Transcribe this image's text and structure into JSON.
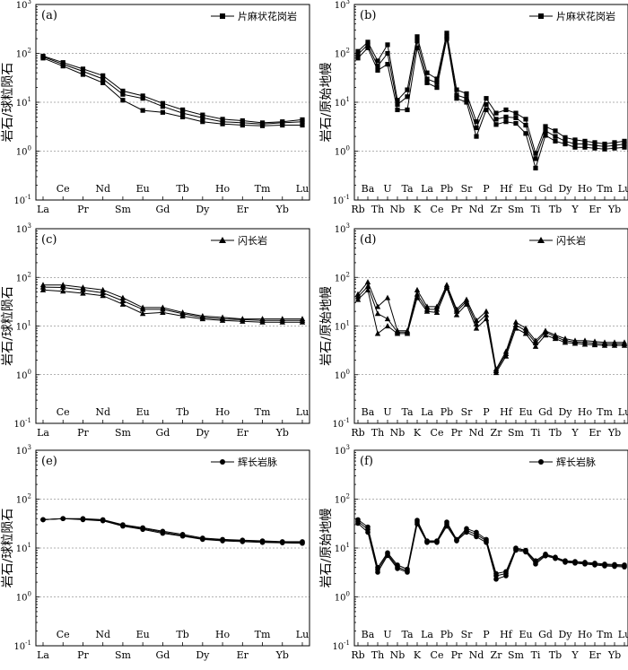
{
  "chart_data": [
    {
      "panel": "(a)",
      "type": "line",
      "x_scale": "category",
      "y_scale": "log",
      "ylim": [
        0.1,
        1000
      ],
      "grid": true,
      "legend_position": "top-right",
      "legend_label": "片麻状花岗岩",
      "marker": "square",
      "ylabel": "岩石/球粒陨石",
      "categories": [
        "La",
        "Ce",
        "Pr",
        "Nd",
        "Sm",
        "Eu",
        "Gd",
        "Tb",
        "Dy",
        "Ho",
        "Er",
        "Tm",
        "Yb",
        "Lu"
      ],
      "series": [
        {
          "values": [
            88,
            65,
            48,
            35,
            17,
            13.5,
            9.5,
            7,
            5.5,
            4.5,
            4.2,
            3.8,
            4.0,
            4.4
          ]
        },
        {
          "values": [
            85,
            60,
            43,
            30,
            14.5,
            12,
            8.2,
            6,
            4.8,
            4.0,
            3.8,
            3.6,
            3.8,
            4.0
          ]
        },
        {
          "values": [
            80,
            55,
            37,
            25,
            11,
            6.8,
            6.2,
            5,
            4.0,
            3.6,
            3.4,
            3.3,
            3.4,
            3.4
          ]
        }
      ]
    },
    {
      "panel": "(b)",
      "type": "line",
      "x_scale": "category",
      "y_scale": "log",
      "ylim": [
        0.1,
        1000
      ],
      "grid": true,
      "legend_position": "top-right",
      "legend_label": "片麻状花岗岩",
      "marker": "square",
      "ylabel": "岩石/原始地幔",
      "categories": [
        "Rb",
        "Ba",
        "Th",
        "U",
        "Nb",
        "Ta",
        "K",
        "La",
        "Ce",
        "Pb",
        "Pr",
        "Sr",
        "Nd",
        "P",
        "Zr",
        "Hf",
        "Sm",
        "Eu",
        "Ti",
        "Gd",
        "Tb",
        "Dy",
        "Y",
        "Ho",
        "Er",
        "Tm",
        "Yb",
        "Lu"
      ],
      "series": [
        {
          "values": [
            110,
            170,
            70,
            150,
            11,
            18,
            220,
            40,
            30,
            260,
            18,
            15,
            4,
            12,
            6,
            7,
            6,
            4.5,
            0.9,
            3.2,
            2.6,
            1.9,
            1.7,
            1.6,
            1.5,
            1.4,
            1.5,
            1.6
          ]
        },
        {
          "values": [
            95,
            150,
            55,
            100,
            9,
            13,
            180,
            30,
            25,
            220,
            14,
            12,
            3,
            9,
            4.5,
            5,
            4.8,
            3.4,
            0.7,
            2.6,
            2.0,
            1.6,
            1.4,
            1.4,
            1.3,
            1.25,
            1.3,
            1.4
          ]
        },
        {
          "values": [
            80,
            130,
            45,
            60,
            7,
            7,
            130,
            25,
            20,
            200,
            12,
            10,
            2,
            7,
            3.5,
            4,
            3.7,
            2.3,
            0.45,
            2.1,
            1.6,
            1.4,
            1.2,
            1.2,
            1.15,
            1.1,
            1.15,
            1.2
          ]
        }
      ]
    },
    {
      "panel": "(c)",
      "type": "line",
      "x_scale": "category",
      "y_scale": "log",
      "ylim": [
        0.1,
        1000
      ],
      "grid": true,
      "legend_position": "top-right",
      "legend_label": "闪长岩",
      "marker": "triangle",
      "ylabel": "岩石/球粒陨石",
      "categories": [
        "La",
        "Ce",
        "Pr",
        "Nd",
        "Sm",
        "Eu",
        "Gd",
        "Tb",
        "Dy",
        "Ho",
        "Er",
        "Tm",
        "Yb",
        "Lu"
      ],
      "series": [
        {
          "values": [
            70,
            70,
            62,
            55,
            38,
            24,
            24,
            19,
            16,
            15,
            14,
            14,
            14,
            14
          ]
        },
        {
          "values": [
            63,
            62,
            55,
            48,
            33,
            22,
            22,
            18,
            15,
            14,
            13.5,
            13,
            13,
            13
          ]
        },
        {
          "values": [
            55,
            52,
            47,
            42,
            28,
            18,
            19,
            16,
            14,
            13,
            12.5,
            12,
            12,
            12
          ]
        }
      ]
    },
    {
      "panel": "(d)",
      "type": "line",
      "x_scale": "category",
      "y_scale": "log",
      "ylim": [
        0.1,
        1000
      ],
      "grid": true,
      "legend_position": "top-right",
      "legend_label": "闪长岩",
      "marker": "triangle",
      "ylabel": "岩石/原始地幔",
      "categories": [
        "Rb",
        "Ba",
        "Th",
        "U",
        "Nb",
        "Ta",
        "K",
        "La",
        "Ce",
        "Pb",
        "Pr",
        "Sr",
        "Nd",
        "P",
        "Zr",
        "Hf",
        "Sm",
        "Eu",
        "Ti",
        "Gd",
        "Tb",
        "Dy",
        "Y",
        "Ho",
        "Er",
        "Tm",
        "Yb",
        "Lu"
      ],
      "series": [
        {
          "values": [
            45,
            80,
            25,
            38,
            8,
            8,
            55,
            25,
            25,
            70,
            22,
            35,
            13,
            20,
            1.3,
            3,
            12,
            9,
            5,
            8,
            6.5,
            5.5,
            5,
            5,
            4.8,
            4.6,
            4.6,
            4.6
          ]
        },
        {
          "values": [
            40,
            65,
            18,
            14,
            7.5,
            7.5,
            45,
            22,
            22,
            65,
            20,
            32,
            11,
            17,
            1.2,
            2.7,
            10.5,
            8,
            4.5,
            7.5,
            6,
            5,
            4.7,
            4.6,
            4.4,
            4.3,
            4.3,
            4.3
          ]
        },
        {
          "values": [
            35,
            55,
            7,
            10,
            7,
            7,
            38,
            20,
            19,
            60,
            17,
            28,
            9,
            14,
            1.1,
            2.4,
            9,
            7,
            3.8,
            6.5,
            5.5,
            4.6,
            4.4,
            4.2,
            4.1,
            4.0,
            4.0,
            4.0
          ]
        }
      ]
    },
    {
      "panel": "(e)",
      "type": "line",
      "x_scale": "category",
      "y_scale": "log",
      "ylim": [
        0.1,
        1000
      ],
      "grid": true,
      "legend_position": "top-right",
      "legend_label": "辉长岩脉",
      "marker": "circle",
      "ylabel": "岩石/球粒陨石",
      "categories": [
        "La",
        "Ce",
        "Pr",
        "Nd",
        "Sm",
        "Eu",
        "Gd",
        "Tb",
        "Dy",
        "Ho",
        "Er",
        "Tm",
        "Yb",
        "Lu"
      ],
      "series": [
        {
          "values": [
            38,
            40,
            40,
            38,
            30,
            26,
            22,
            19,
            16,
            15,
            14.5,
            14,
            13.5,
            13.5
          ]
        },
        {
          "values": [
            38,
            40,
            39,
            37,
            29,
            25,
            21,
            18,
            15.5,
            14.5,
            14,
            13.5,
            13,
            13
          ]
        },
        {
          "values": [
            38,
            40,
            38,
            36,
            28,
            24,
            20,
            17.5,
            15,
            14,
            13.5,
            13,
            12.8,
            12.5
          ]
        }
      ]
    },
    {
      "panel": "(f)",
      "type": "line",
      "x_scale": "category",
      "y_scale": "log",
      "ylim": [
        0.1,
        1000
      ],
      "grid": true,
      "legend_position": "top-right",
      "legend_label": "辉长岩脉",
      "marker": "circle",
      "ylabel": "岩石/原始地幔",
      "categories": [
        "Rb",
        "Ba",
        "Th",
        "U",
        "Nb",
        "Ta",
        "K",
        "La",
        "Ce",
        "Pb",
        "Pr",
        "Sr",
        "Nd",
        "P",
        "Zr",
        "Hf",
        "Sm",
        "Eu",
        "Ti",
        "Gd",
        "Tb",
        "Dy",
        "Y",
        "Ho",
        "Er",
        "Tm",
        "Yb",
        "Lu"
      ],
      "series": [
        {
          "values": [
            38,
            27,
            4,
            8,
            4.5,
            3.7,
            37,
            14,
            14,
            34,
            15,
            25,
            21,
            15,
            3,
            3.3,
            10,
            9,
            5.5,
            7.5,
            6.5,
            5.5,
            5.3,
            5.1,
            4.9,
            4.7,
            4.6,
            4.5
          ]
        },
        {
          "values": [
            35,
            24,
            3.6,
            7.5,
            4.1,
            3.4,
            34,
            13.5,
            13.5,
            31,
            14.5,
            23,
            19,
            14,
            2.7,
            3.0,
            9.5,
            8.7,
            5.1,
            7.2,
            6.3,
            5.3,
            5.1,
            4.9,
            4.7,
            4.5,
            4.4,
            4.3
          ]
        },
        {
          "values": [
            32,
            21,
            3.2,
            7,
            3.8,
            3.2,
            31,
            13,
            13,
            28,
            14,
            21,
            17,
            13,
            2.3,
            2.7,
            9,
            8.3,
            4.7,
            6.9,
            6.1,
            5.1,
            4.9,
            4.7,
            4.5,
            4.3,
            4.2,
            4.1
          ]
        }
      ]
    }
  ]
}
